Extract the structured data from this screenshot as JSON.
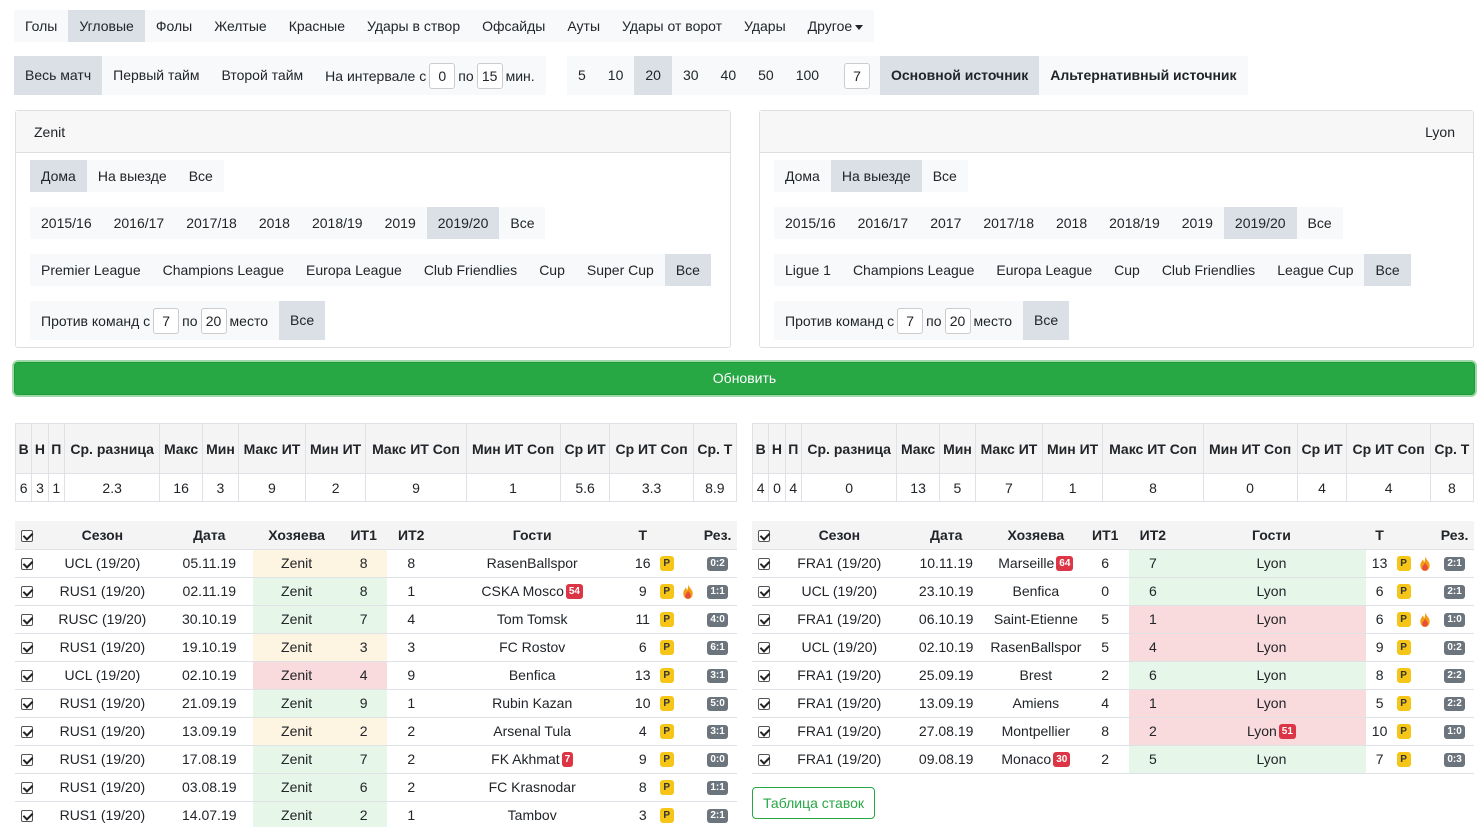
{
  "stat_tabs": [
    "Голы",
    "Угловые",
    "Фолы",
    "Желтые",
    "Красные",
    "Удары в створ",
    "Офсайды",
    "Ауты",
    "Удары от ворот",
    "Удары",
    "Другое"
  ],
  "stat_active": 1,
  "period": {
    "full": "Весь матч",
    "first": "Первый тайм",
    "second": "Второй тайм",
    "interval_label": "На интервале с",
    "from": "0",
    "to_label": "по",
    "to": "15",
    "unit": "мин."
  },
  "counts": [
    "5",
    "10",
    "20",
    "30",
    "40",
    "50",
    "100"
  ],
  "count_custom": "7",
  "sources": {
    "main": "Основной источник",
    "alt": "Альтернативный источник"
  },
  "home_panel": {
    "team": "Zenit",
    "venue": [
      "Дома",
      "На выезде",
      "Все"
    ],
    "seasons": [
      "2015/16",
      "2016/17",
      "2017/18",
      "2018",
      "2018/19",
      "2019",
      "2019/20",
      "Все"
    ],
    "competitions": [
      "Premier League",
      "Champions League",
      "Europa League",
      "Club Friendlies",
      "Cup",
      "Super Cup",
      "Все"
    ],
    "vs_label": "Против команд с",
    "vs_from": "7",
    "vs_to_label": "по",
    "vs_to": "20",
    "vs_suffix": "место",
    "vs_all": "Все"
  },
  "away_panel": {
    "team": "Lyon",
    "venue": [
      "Дома",
      "На выезде",
      "Все"
    ],
    "seasons": [
      "2015/16",
      "2016/17",
      "2017",
      "2017/18",
      "2018",
      "2018/19",
      "2019",
      "2019/20",
      "Все"
    ],
    "competitions": [
      "Ligue 1",
      "Champions League",
      "Europa League",
      "Cup",
      "Club Friendlies",
      "League Cup",
      "Все"
    ],
    "vs_label": "Против команд с",
    "vs_from": "7",
    "vs_to_label": "по",
    "vs_to": "20",
    "vs_suffix": "место",
    "vs_all": "Все"
  },
  "update_label": "Обновить",
  "stats_headers": [
    "В",
    "Н",
    "П",
    "Ср. разница",
    "Макс",
    "Мин",
    "Макс ИТ",
    "Мин ИТ",
    "Макс ИТ Соп",
    "Мин ИТ Соп",
    "Ср ИТ",
    "Ср ИТ Соп",
    "Ср. Т"
  ],
  "home_stats": [
    "6",
    "3",
    "1",
    "2.3",
    "16",
    "3",
    "9",
    "2",
    "9",
    "1",
    "5.6",
    "3.3",
    "8.9"
  ],
  "away_stats": [
    "4",
    "0",
    "4",
    "0",
    "13",
    "5",
    "7",
    "1",
    "8",
    "0",
    "4",
    "4",
    "8"
  ],
  "games_headers": [
    "Сезон",
    "Дата",
    "Хозяева",
    "ИТ1",
    "ИТ2",
    "Гости",
    "Т",
    "Рез."
  ],
  "home_games": [
    {
      "season": "UCL (19/20)",
      "date": "05.11.19",
      "home": "Zenit",
      "it1": "8",
      "it2": "8",
      "away": "RasenBallspor",
      "t": "16",
      "res": "0:2",
      "badge": "",
      "fire": false,
      "hl": "y"
    },
    {
      "season": "RUS1 (19/20)",
      "date": "02.11.19",
      "home": "Zenit",
      "it1": "8",
      "it2": "1",
      "away": "CSKA Mosco",
      "t": "9",
      "res": "1:1",
      "badge": "54",
      "fire": true,
      "hl": "g"
    },
    {
      "season": "RUSC (19/20)",
      "date": "30.10.19",
      "home": "Zenit",
      "it1": "7",
      "it2": "4",
      "away": "Tom Tomsk",
      "t": "11",
      "res": "4:0",
      "badge": "",
      "fire": false,
      "hl": "g"
    },
    {
      "season": "RUS1 (19/20)",
      "date": "19.10.19",
      "home": "Zenit",
      "it1": "3",
      "it2": "3",
      "away": "FC Rostov",
      "t": "6",
      "res": "6:1",
      "badge": "",
      "fire": false,
      "hl": "y"
    },
    {
      "season": "UCL (19/20)",
      "date": "02.10.19",
      "home": "Zenit",
      "it1": "4",
      "it2": "9",
      "away": "Benfica",
      "t": "13",
      "res": "3:1",
      "badge": "",
      "fire": false,
      "hl": "r"
    },
    {
      "season": "RUS1 (19/20)",
      "date": "21.09.19",
      "home": "Zenit",
      "it1": "9",
      "it2": "1",
      "away": "Rubin Kazan",
      "t": "10",
      "res": "5:0",
      "badge": "",
      "fire": false,
      "hl": "g"
    },
    {
      "season": "RUS1 (19/20)",
      "date": "13.09.19",
      "home": "Zenit",
      "it1": "2",
      "it2": "2",
      "away": "Arsenal Tula",
      "t": "4",
      "res": "3:1",
      "badge": "",
      "fire": false,
      "hl": "y"
    },
    {
      "season": "RUS1 (19/20)",
      "date": "17.08.19",
      "home": "Zenit",
      "it1": "7",
      "it2": "2",
      "away": "FK Akhmat",
      "t": "9",
      "res": "0:0",
      "badge": "7",
      "fire": false,
      "hl": "g"
    },
    {
      "season": "RUS1 (19/20)",
      "date": "03.08.19",
      "home": "Zenit",
      "it1": "6",
      "it2": "2",
      "away": "FC Krasnodar",
      "t": "8",
      "res": "1:1",
      "badge": "",
      "fire": false,
      "hl": "g"
    },
    {
      "season": "RUS1 (19/20)",
      "date": "14.07.19",
      "home": "Zenit",
      "it1": "2",
      "it2": "1",
      "away": "Tambov",
      "t": "3",
      "res": "2:1",
      "badge": "",
      "fire": false,
      "hl": "g"
    }
  ],
  "away_games": [
    {
      "season": "FRA1 (19/20)",
      "date": "10.11.19",
      "home": "Marseille",
      "it1": "6",
      "it2": "7",
      "away": "Lyon",
      "t": "13",
      "res": "2:1",
      "badge": "64",
      "abadge": "",
      "fire": true,
      "hl": "g"
    },
    {
      "season": "UCL (19/20)",
      "date": "23.10.19",
      "home": "Benfica",
      "it1": "0",
      "it2": "6",
      "away": "Lyon",
      "t": "6",
      "res": "2:1",
      "badge": "",
      "abadge": "",
      "fire": false,
      "hl": "g"
    },
    {
      "season": "FRA1 (19/20)",
      "date": "06.10.19",
      "home": "Saint-Etienne",
      "it1": "5",
      "it2": "1",
      "away": "Lyon",
      "t": "6",
      "res": "1:0",
      "badge": "",
      "abadge": "",
      "fire": true,
      "hl": "r"
    },
    {
      "season": "UCL (19/20)",
      "date": "02.10.19",
      "home": "RasenBallspor",
      "it1": "5",
      "it2": "4",
      "away": "Lyon",
      "t": "9",
      "res": "0:2",
      "badge": "",
      "abadge": "",
      "fire": false,
      "hl": "r"
    },
    {
      "season": "FRA1 (19/20)",
      "date": "25.09.19",
      "home": "Brest",
      "it1": "2",
      "it2": "6",
      "away": "Lyon",
      "t": "8",
      "res": "2:2",
      "badge": "",
      "abadge": "",
      "fire": false,
      "hl": "g"
    },
    {
      "season": "FRA1 (19/20)",
      "date": "13.09.19",
      "home": "Amiens",
      "it1": "4",
      "it2": "1",
      "away": "Lyon",
      "t": "5",
      "res": "2:2",
      "badge": "",
      "abadge": "",
      "fire": false,
      "hl": "r"
    },
    {
      "season": "FRA1 (19/20)",
      "date": "27.08.19",
      "home": "Montpellier",
      "it1": "8",
      "it2": "2",
      "away": "Lyon",
      "t": "10",
      "res": "1:0",
      "badge": "",
      "abadge": "51",
      "fire": false,
      "hl": "r"
    },
    {
      "season": "FRA1 (19/20)",
      "date": "09.08.19",
      "home": "Monaco",
      "it1": "2",
      "it2": "5",
      "away": "Lyon",
      "t": "7",
      "res": "0:3",
      "badge": "30",
      "abadge": "",
      "fire": false,
      "hl": "g"
    }
  ],
  "pbadge_label": "P",
  "bets_label": "Таблица ставок",
  "colors": {
    "accent_green": "#28a745",
    "highlight_green": "#e6f7ea",
    "highlight_red": "#f9dadd",
    "highlight_yellow": "#fdf4e2",
    "badge_red": "#dc3545",
    "badge_yellow": "#f5c518"
  }
}
